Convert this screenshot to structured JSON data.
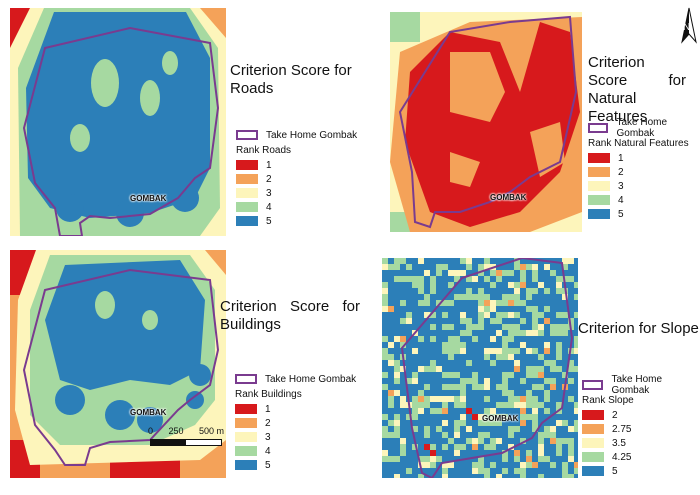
{
  "colors": {
    "r1": "#d7191c",
    "r2": "#f4a259",
    "r3": "#fdf5bb",
    "r4": "#a6d9a1",
    "r5": "#2c7fb8",
    "boundary": "#7a3b8f"
  },
  "boundary_legend": "Take Home Gombak",
  "place_label": "GOMBAK",
  "north_arrow": {
    "letter": "N",
    "icon": "north-arrow-icon"
  },
  "panels": [
    {
      "id": "roads",
      "title": "Criterion Score for Roads",
      "legend_title": "Rank Roads",
      "classes": [
        "1",
        "2",
        "3",
        "4",
        "5"
      ]
    },
    {
      "id": "natural",
      "title": "Criterion Score for Natural Features",
      "legend_title": "Rank Natural Features",
      "classes": [
        "1",
        "2",
        "3",
        "4",
        "5"
      ]
    },
    {
      "id": "buildings",
      "title": "Criterion Score for Buildings",
      "legend_title": "Rank Buildings",
      "classes": [
        "1",
        "2",
        "3",
        "4",
        "5"
      ]
    },
    {
      "id": "slope",
      "title": "Criterion for Slope",
      "legend_title": "Rank Slope",
      "classes": [
        "2",
        "2.75",
        "3.5",
        "4.25",
        "5"
      ]
    }
  ],
  "scalebar": {
    "labels": [
      "0",
      "250",
      "500 m"
    ]
  }
}
